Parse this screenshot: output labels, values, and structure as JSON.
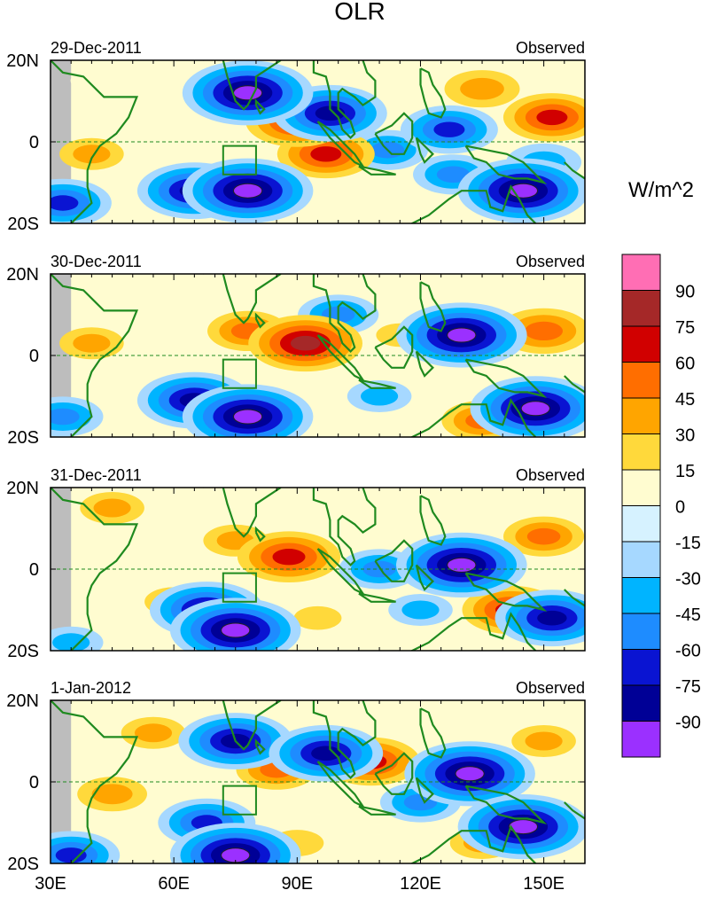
{
  "chart_data": {
    "type": "heatmap",
    "title": "OLR",
    "units": "W/m^2",
    "x_ticks": [
      "30E",
      "60E",
      "90E",
      "120E",
      "150E"
    ],
    "x_tick_values": [
      30,
      60,
      90,
      120,
      150
    ],
    "xlim": [
      30,
      160
    ],
    "y_ticks": [
      "20N",
      "0",
      "20S"
    ],
    "y_tick_values": [
      20,
      0,
      -20
    ],
    "ylim": [
      -20,
      20
    ],
    "colorbar": {
      "levels": [
        "90",
        "75",
        "60",
        "45",
        "30",
        "15",
        "0",
        "-15",
        "-30",
        "-45",
        "-60",
        "-75",
        "-90"
      ],
      "colors": [
        "#ff6eb4",
        "#a52828",
        "#d10000",
        "#ff6e00",
        "#ffa500",
        "#ffd93b",
        "#fffcd0",
        "#d6f2ff",
        "#a6d8ff",
        "#00b4ff",
        "#1e8cff",
        "#0a14d2",
        "#000096",
        "#9b30ff"
      ]
    },
    "panels": [
      {
        "date": "29-Dec-2011",
        "label": "Observed",
        "anomalies": [
          {
            "lon": 78,
            "lat": 12,
            "value": -90
          },
          {
            "lon": 98,
            "lat": 7,
            "value": -75
          },
          {
            "lon": 90,
            "lat": 5,
            "value": 65
          },
          {
            "lon": 97,
            "lat": -3,
            "value": 60
          },
          {
            "lon": 78,
            "lat": -12,
            "value": -90
          },
          {
            "lon": 65,
            "lat": -12,
            "value": -75
          },
          {
            "lon": 112,
            "lat": -2,
            "value": -45
          },
          {
            "lon": 127,
            "lat": 3,
            "value": -60
          },
          {
            "lon": 128,
            "lat": -8,
            "value": -45
          },
          {
            "lon": 145,
            "lat": -12,
            "value": -90
          },
          {
            "lon": 152,
            "lat": 6,
            "value": 60
          },
          {
            "lon": 135,
            "lat": 13,
            "value": 40
          },
          {
            "lon": 40,
            "lat": -3,
            "value": 30
          },
          {
            "lon": 33,
            "lat": -15,
            "value": -60
          },
          {
            "lon": 40,
            "lat": 15,
            "value": 10
          },
          {
            "lon": 150,
            "lat": -5,
            "value": -40
          }
        ]
      },
      {
        "date": "30-Dec-2011",
        "label": "Observed",
        "anomalies": [
          {
            "lon": 92,
            "lat": 3,
            "value": 75
          },
          {
            "lon": 78,
            "lat": 6,
            "value": 45
          },
          {
            "lon": 78,
            "lat": -15,
            "value": -90
          },
          {
            "lon": 65,
            "lat": -11,
            "value": -75
          },
          {
            "lon": 130,
            "lat": 5,
            "value": -90
          },
          {
            "lon": 148,
            "lat": -13,
            "value": -90
          },
          {
            "lon": 150,
            "lat": 6,
            "value": 55
          },
          {
            "lon": 135,
            "lat": -16,
            "value": 45
          },
          {
            "lon": 110,
            "lat": -10,
            "value": -30
          },
          {
            "lon": 100,
            "lat": 10,
            "value": -45
          },
          {
            "lon": 40,
            "lat": 3,
            "value": 30
          },
          {
            "lon": 33,
            "lat": -15,
            "value": -45
          },
          {
            "lon": 115,
            "lat": 5,
            "value": 15
          },
          {
            "lon": 60,
            "lat": 12,
            "value": 10
          }
        ]
      },
      {
        "date": "31-Dec-2011",
        "label": "Observed",
        "anomalies": [
          {
            "lon": 88,
            "lat": 3,
            "value": 65
          },
          {
            "lon": 75,
            "lat": 7,
            "value": 30
          },
          {
            "lon": 75,
            "lat": -15,
            "value": -90
          },
          {
            "lon": 68,
            "lat": -10,
            "value": -75
          },
          {
            "lon": 130,
            "lat": 1,
            "value": -90
          },
          {
            "lon": 142,
            "lat": -10,
            "value": 60
          },
          {
            "lon": 152,
            "lat": -12,
            "value": -75
          },
          {
            "lon": 150,
            "lat": 8,
            "value": 45
          },
          {
            "lon": 110,
            "lat": 0,
            "value": -45
          },
          {
            "lon": 120,
            "lat": -10,
            "value": -30
          },
          {
            "lon": 45,
            "lat": 15,
            "value": 30
          },
          {
            "lon": 60,
            "lat": -8,
            "value": 25
          },
          {
            "lon": 95,
            "lat": -12,
            "value": 15
          },
          {
            "lon": 35,
            "lat": -18,
            "value": -30
          }
        ]
      },
      {
        "date": "1-Jan-2012",
        "label": "Observed",
        "anomalies": [
          {
            "lon": 75,
            "lat": 10,
            "value": -75
          },
          {
            "lon": 97,
            "lat": 7,
            "value": -75
          },
          {
            "lon": 108,
            "lat": 5,
            "value": 60
          },
          {
            "lon": 85,
            "lat": 3,
            "value": 45
          },
          {
            "lon": 75,
            "lat": -18,
            "value": -90
          },
          {
            "lon": 68,
            "lat": -10,
            "value": -60
          },
          {
            "lon": 132,
            "lat": 2,
            "value": -90
          },
          {
            "lon": 145,
            "lat": -11,
            "value": -90
          },
          {
            "lon": 150,
            "lat": 10,
            "value": 30
          },
          {
            "lon": 135,
            "lat": -15,
            "value": 30
          },
          {
            "lon": 45,
            "lat": -3,
            "value": 35
          },
          {
            "lon": 55,
            "lat": 12,
            "value": 30
          },
          {
            "lon": 90,
            "lat": -15,
            "value": 20
          },
          {
            "lon": 120,
            "lat": -5,
            "value": -45
          },
          {
            "lon": 35,
            "lat": -18,
            "value": -60
          }
        ]
      }
    ]
  }
}
